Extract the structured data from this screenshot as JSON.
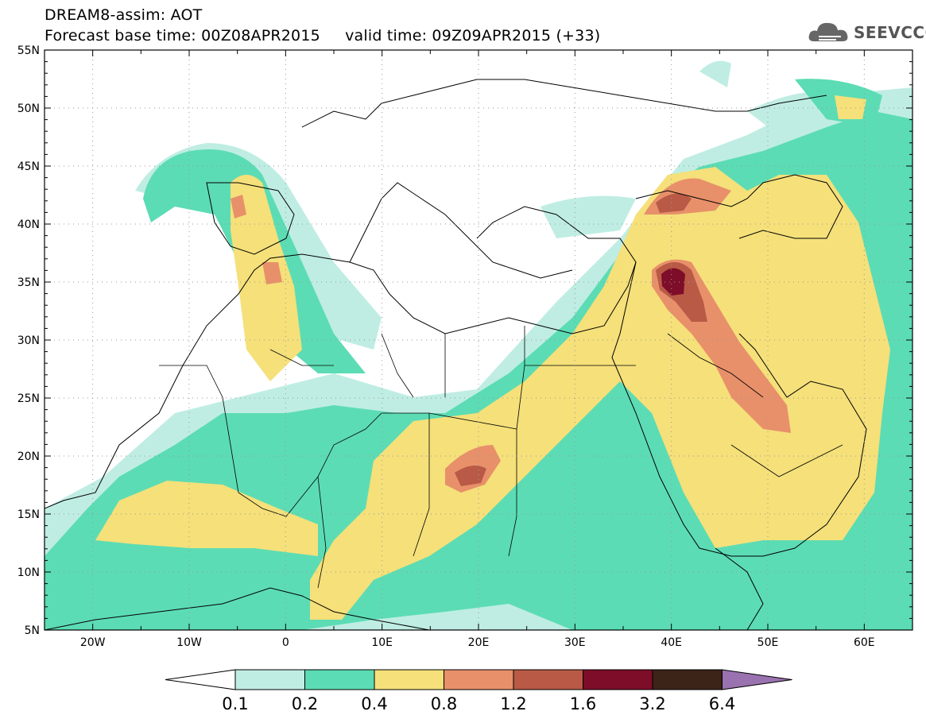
{
  "header": {
    "line1": "DREAM8-assim: AOT",
    "line2": "Forecast base time: 00Z08APR2015     valid time: 09Z09APR2015 (+33)"
  },
  "logo": {
    "text": "SEEVCCC",
    "icon": "cloud-icon"
  },
  "map": {
    "lon_range": [
      -25,
      65
    ],
    "lat_range": [
      5,
      55
    ],
    "lon_ticks": [
      "20W",
      "10W",
      "0",
      "10E",
      "20E",
      "30E",
      "40E",
      "50E",
      "60E"
    ],
    "lat_ticks": [
      "55N",
      "50N",
      "45N",
      "40N",
      "35N",
      "30N",
      "25N",
      "20N",
      "15N",
      "10N",
      "5N"
    ],
    "grid": "dotted"
  },
  "colorbar": {
    "labels": [
      "0.1",
      "0.2",
      "0.4",
      "0.8",
      "1.2",
      "1.6",
      "3.2",
      "6.4"
    ],
    "colors": [
      "#ffffff",
      "#bfede3",
      "#5cdcb4",
      "#f5e07a",
      "#e8906a",
      "#b95a46",
      "#7d0d28",
      "#3c2418",
      "#9a72b0"
    ]
  }
}
